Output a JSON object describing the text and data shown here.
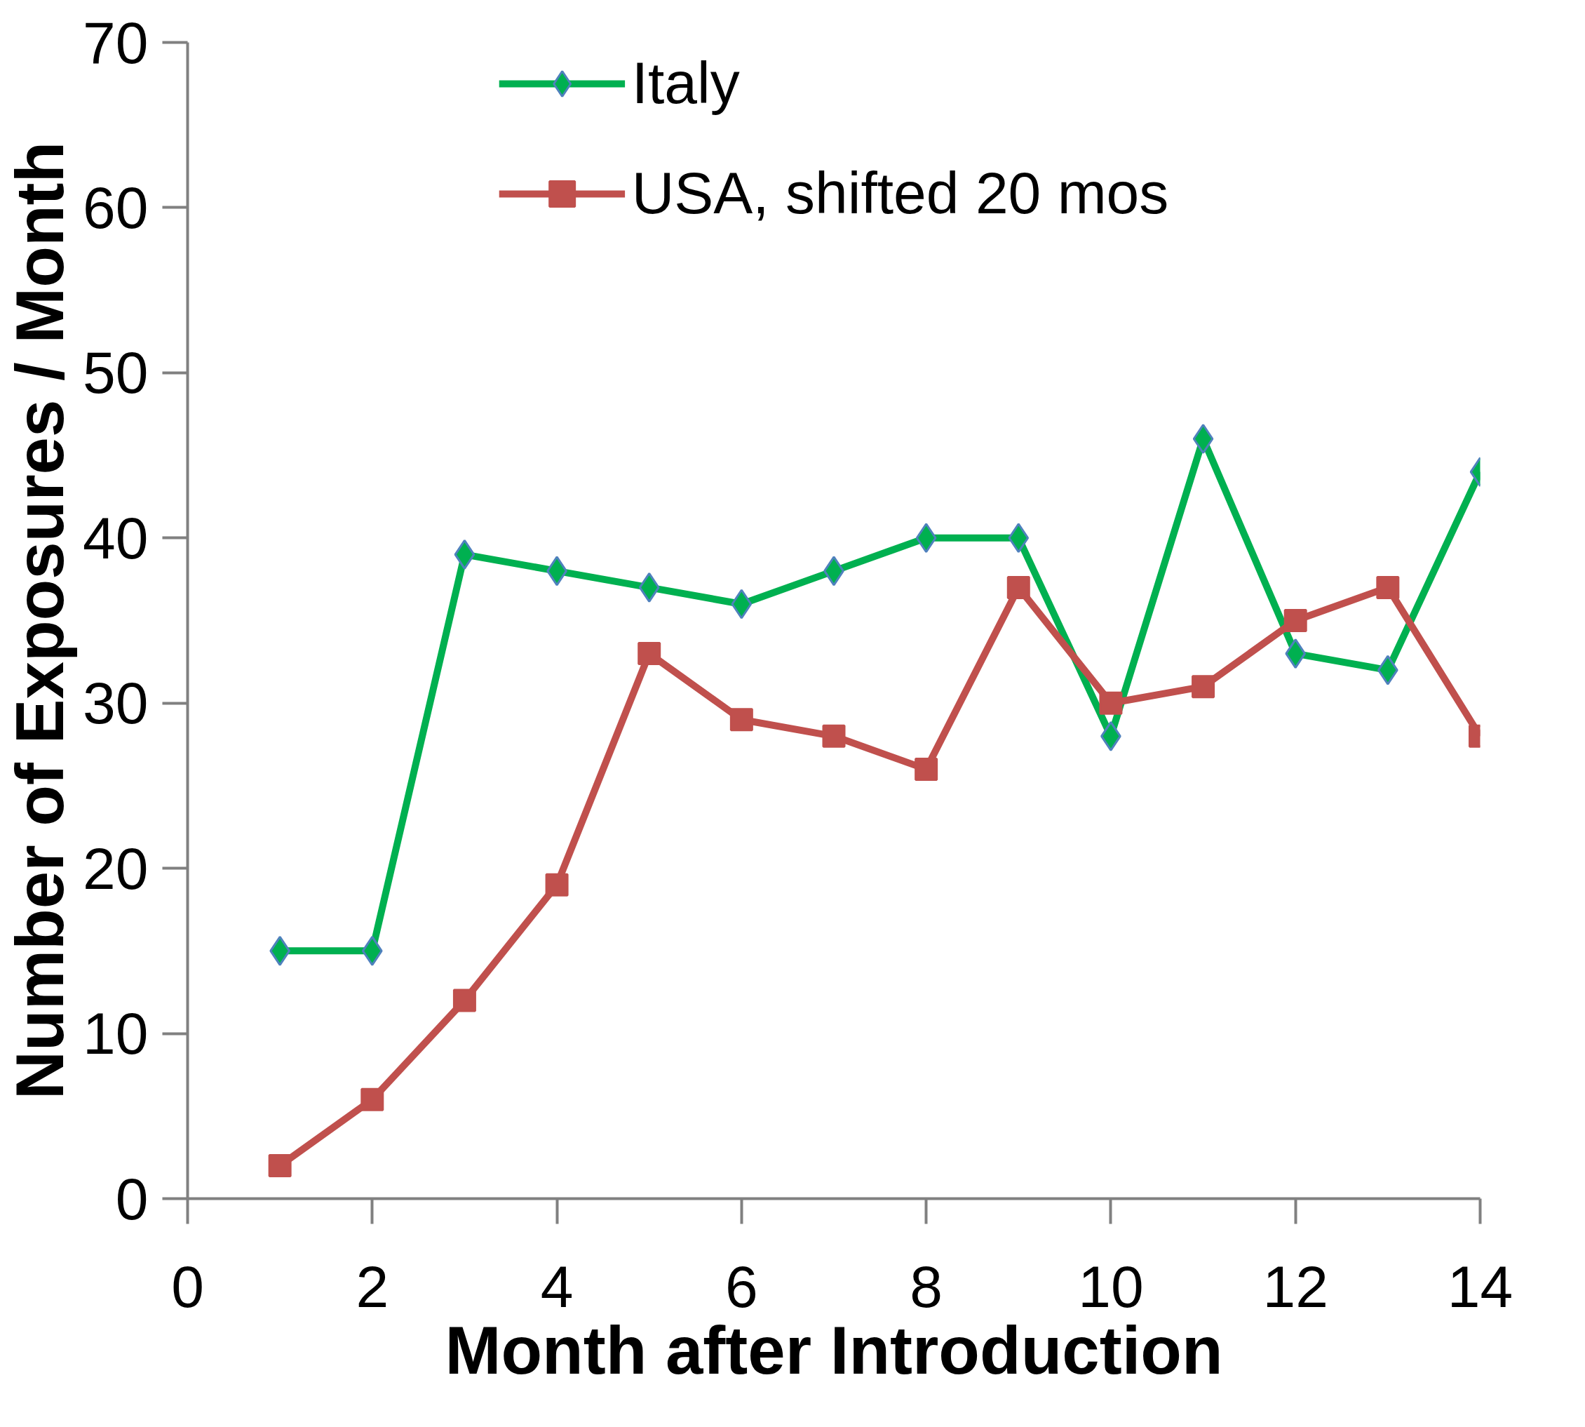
{
  "chart_data": {
    "type": "line",
    "xlabel": "Month after Introduction",
    "ylabel": "Number of Exposures / Month",
    "x": [
      1,
      2,
      3,
      4,
      5,
      6,
      7,
      8,
      9,
      10,
      11,
      12,
      13,
      14
    ],
    "series": [
      {
        "name": "Italy",
        "color": "#00b050",
        "marker": "diamond",
        "values": [
          15,
          15,
          39,
          38,
          37,
          36,
          38,
          40,
          40,
          28,
          46,
          33,
          32,
          44
        ]
      },
      {
        "name": "USA, shifted 20 mos",
        "color": "#c0504d",
        "marker": "square",
        "values": [
          2,
          6,
          12,
          19,
          33,
          29,
          28,
          26,
          37,
          30,
          31,
          35,
          37,
          28
        ]
      }
    ],
    "xlim": [
      0,
      14
    ],
    "ylim": [
      0,
      70
    ],
    "xticks": [
      0,
      2,
      4,
      6,
      8,
      10,
      12,
      14
    ],
    "yticks": [
      0,
      10,
      20,
      30,
      40,
      50,
      60,
      70
    ],
    "grid": false,
    "legend": "top",
    "line_style": "solid"
  }
}
